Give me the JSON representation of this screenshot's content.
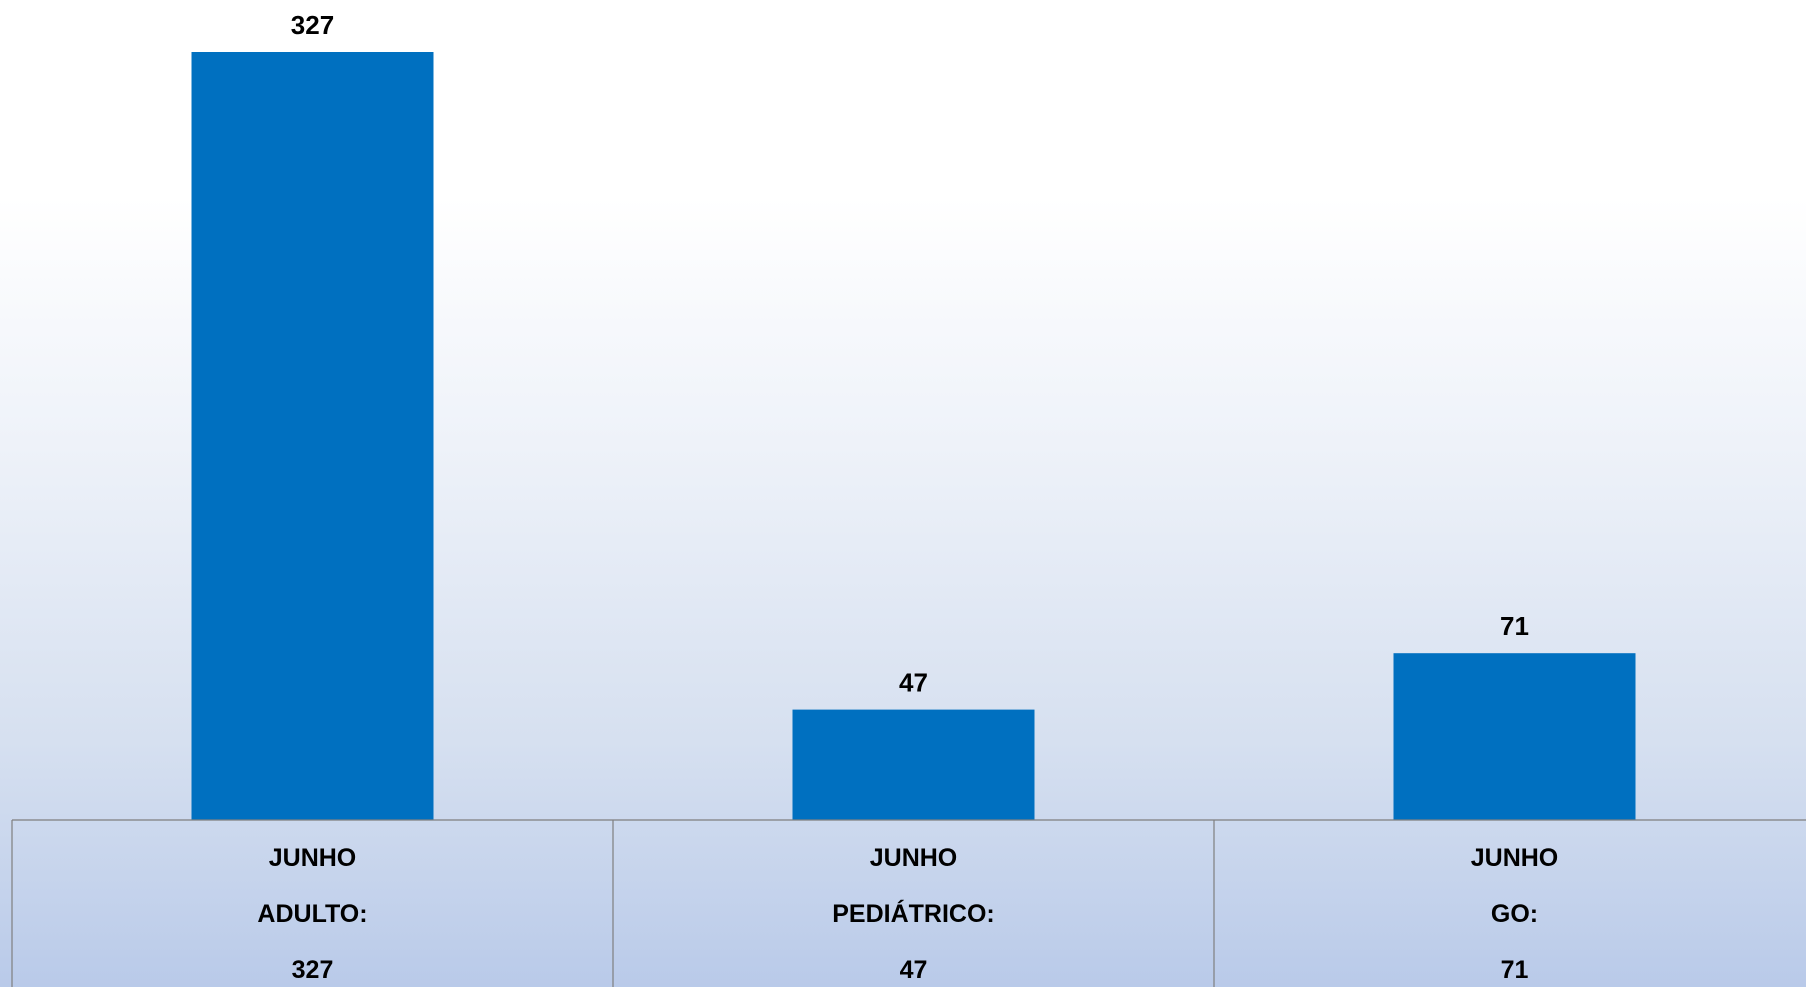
{
  "chart_data": {
    "type": "bar",
    "categories": [
      [
        "JUNHO",
        "ADULTO:",
        "327"
      ],
      [
        "JUNHO",
        "PEDIÁTRICO:",
        "47"
      ],
      [
        "JUNHO",
        "GO:",
        "71"
      ]
    ],
    "values": [
      327,
      47,
      71
    ],
    "data_labels": [
      "327",
      "47",
      "71"
    ],
    "title": "",
    "xlabel": "",
    "ylabel": "",
    "ylim": [
      0,
      327
    ],
    "grid": false,
    "legend": "none",
    "bar_color": "#0070c0"
  }
}
